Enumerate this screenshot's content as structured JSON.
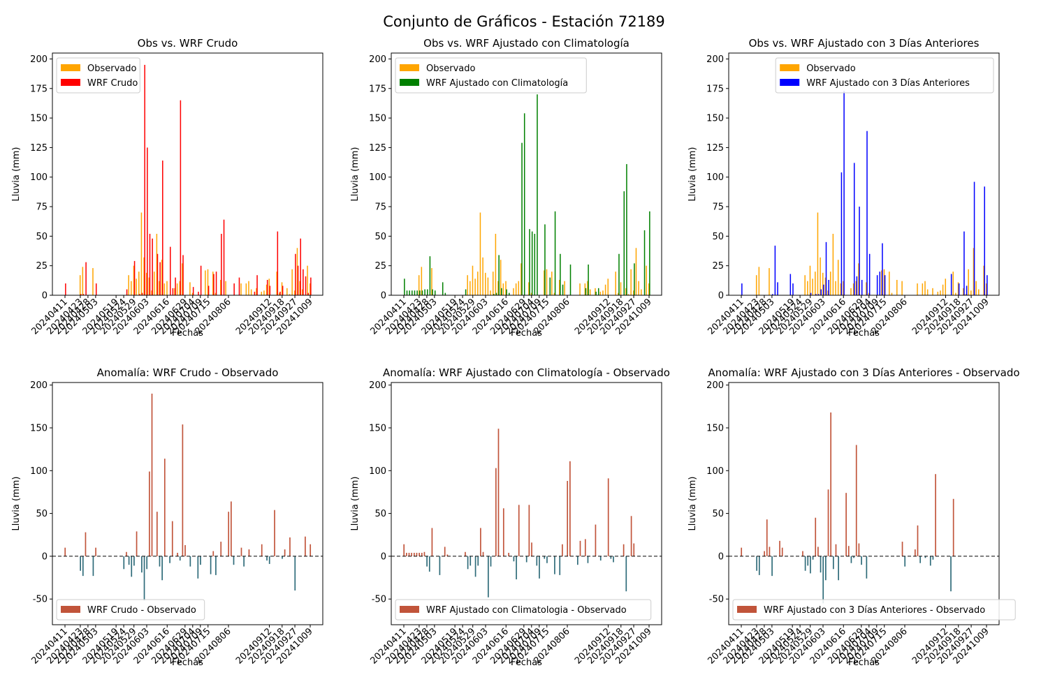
{
  "figure": {
    "title": "Conjunto de Gráficos - Estación 72189"
  },
  "colors": {
    "observed": "#FFA500",
    "raw": "#FF0000",
    "clim": "#008000",
    "prev3": "#0000FF",
    "anom_pos": "#C1543A",
    "anom_neg": "#2E6B79"
  },
  "dates": [
    "20240411",
    "20240413",
    "20240415",
    "20240417",
    "20240419",
    "20240421",
    "20240423",
    "20240425",
    "20240427",
    "20240428",
    "20240430",
    "20240501",
    "20240503",
    "20240505",
    "20240507",
    "20240509",
    "20240511",
    "20240513",
    "20240515",
    "20240517",
    "20240519",
    "20240520",
    "20240522",
    "20240524",
    "20240525",
    "20240527",
    "20240528",
    "20240529",
    "20240530",
    "20240531",
    "20240601",
    "20240602",
    "20240603",
    "20240605",
    "20240606",
    "20240608",
    "20240610",
    "20240611",
    "20240613",
    "20240614",
    "20240616",
    "20240617",
    "20240619",
    "20240621",
    "20240623",
    "20240625",
    "20240627",
    "20240629",
    "20240630",
    "20240702",
    "20240704",
    "20240705",
    "20240707",
    "20240709",
    "20240710",
    "20240712",
    "20240715",
    "20240717",
    "20240720",
    "20240723",
    "20240726",
    "20240729",
    "20240801",
    "20240803",
    "20240806",
    "20240808",
    "20240810",
    "20240812",
    "20240814",
    "20240816",
    "20240818",
    "20240820",
    "20240823",
    "20240826",
    "20240829",
    "20240901",
    "20240904",
    "20240906",
    "20240908",
    "20240910",
    "20240912",
    "20240914",
    "20240915",
    "20240916",
    "20240917",
    "20240918",
    "20240920",
    "20240922",
    "20240924",
    "20240926",
    "20240927",
    "20240929",
    "20241001",
    "20241003",
    "20241005",
    "20241007",
    "20241009"
  ],
  "tick_labels": [
    "20240411",
    "20240423",
    "20240428",
    "20240503",
    "20240519",
    "20240524",
    "20240529",
    "20240603",
    "20240616",
    "20240629",
    "20240704",
    "20240709",
    "20240715",
    "20240806",
    "20240912",
    "20240918",
    "20240927",
    "20241009"
  ],
  "chart_data": [
    {
      "type": "bar",
      "title": "Obs vs. WRF Crudo",
      "xlabel": "Fechas",
      "ylabel": "Lluvia (mm)",
      "ylim": [
        0,
        205
      ],
      "yticks": [
        0,
        25,
        50,
        75,
        100,
        125,
        150,
        175,
        200
      ],
      "legend_placement": "top-left",
      "series": [
        {
          "name": "Observado",
          "key": "obs",
          "color": "#FFA500"
        },
        {
          "name": "WRF Crudo",
          "key": "raw",
          "color": "#FF0000"
        }
      ]
    },
    {
      "type": "bar",
      "title": "Obs vs. WRF Ajustado con Climatología",
      "xlabel": "Fechas",
      "ylabel": "Lluvia (mm)",
      "ylim": [
        0,
        205
      ],
      "yticks": [
        0,
        25,
        50,
        75,
        100,
        125,
        150,
        175,
        200
      ],
      "legend_placement": "top-left",
      "series": [
        {
          "name": "Observado",
          "key": "obs",
          "color": "#FFA500"
        },
        {
          "name": "WRF Ajustado con Climatología",
          "key": "clim",
          "color": "#008000"
        }
      ]
    },
    {
      "type": "bar",
      "title": "Obs vs. WRF Ajustado con 3 Días Anteriores",
      "xlabel": "Fechas",
      "ylabel": "Lluvia (mm)",
      "ylim": [
        0,
        205
      ],
      "yticks": [
        0,
        25,
        50,
        75,
        100,
        125,
        150,
        175,
        200
      ],
      "legend_placement": "top-right",
      "series": [
        {
          "name": "Observado",
          "key": "obs",
          "color": "#FFA500"
        },
        {
          "name": "WRF Ajustado con 3 Días Anteriores",
          "key": "prev3",
          "color": "#0000FF"
        }
      ]
    },
    {
      "type": "bar",
      "title": "Anomalía: WRF Crudo - Observado",
      "xlabel": "Fechas",
      "ylabel": "Lluvia (mm)",
      "ylim": [
        -80,
        203
      ],
      "yticks": [
        -50,
        0,
        50,
        100,
        150,
        200
      ],
      "legend_placement": "bottom-left",
      "series": [
        {
          "name": "WRF Crudo - Observado",
          "key": "raw",
          "color": "#C1543A"
        }
      ]
    },
    {
      "type": "bar",
      "title": "Anomalía: WRF Ajustado con Climatología - Observado",
      "xlabel": "Fechas",
      "ylabel": "Lluvia (mm)",
      "ylim": [
        -80,
        203
      ],
      "yticks": [
        -50,
        0,
        50,
        100,
        150,
        200
      ],
      "legend_placement": "bottom-left",
      "series": [
        {
          "name": "WRF Ajustado con Climatologia - Observado",
          "key": "clim",
          "color": "#C1543A"
        }
      ]
    },
    {
      "type": "bar",
      "title": "Anomalía: WRF Ajustado con 3 Días Anteriores - Observado",
      "xlabel": "Fechas",
      "ylabel": "Lluvia (mm)",
      "ylim": [
        -80,
        203
      ],
      "yticks": [
        -50,
        0,
        50,
        100,
        150,
        200
      ],
      "legend_placement": "bottom-left",
      "series": [
        {
          "name": "WRF Ajustado con 3 Días Anteriores - Observado",
          "key": "prev3",
          "color": "#C1543A"
        }
      ]
    }
  ],
  "values": {
    "obs": [
      0,
      0,
      0,
      0,
      0,
      0,
      17,
      24,
      0,
      0,
      0,
      23,
      0,
      0,
      0,
      0,
      0,
      0,
      0,
      0,
      0,
      0,
      0,
      0,
      0,
      17,
      12,
      25,
      14,
      20,
      70,
      32,
      19,
      15,
      4,
      20,
      52,
      12,
      30,
      10,
      12,
      0,
      0,
      6,
      10,
      12,
      27,
      0,
      0,
      11,
      2,
      0,
      0,
      0,
      0,
      21,
      22,
      0,
      20,
      2,
      0,
      13,
      0,
      12,
      0,
      0,
      0,
      0,
      0,
      10,
      0,
      10,
      12,
      5,
      0,
      6,
      0,
      3,
      4,
      9,
      14,
      0,
      0,
      20,
      2,
      11,
      0,
      6,
      1,
      22,
      4,
      40,
      12,
      5,
      0,
      25,
      10
    ],
    "raw": [
      10,
      0,
      0,
      0,
      0,
      0,
      1,
      1,
      28,
      0,
      0,
      0,
      10,
      0,
      0,
      0,
      0,
      0,
      0,
      0,
      0,
      0,
      0,
      0,
      5,
      0,
      0,
      29,
      0,
      1,
      2,
      195,
      125,
      52,
      48,
      0,
      35,
      28,
      114,
      0,
      0,
      41,
      6,
      15,
      0,
      165,
      34,
      0,
      0,
      0,
      7,
      0,
      3,
      25,
      0,
      0,
      8,
      0,
      18,
      20,
      0,
      52,
      64,
      0,
      0,
      0,
      10,
      0,
      15,
      0,
      0,
      0,
      0,
      0,
      3,
      17,
      0,
      0,
      0,
      13,
      8,
      0,
      0,
      54,
      3,
      8,
      0,
      0,
      0,
      0,
      35,
      25,
      48,
      22,
      16,
      2,
      15
    ],
    "clim": [
      14,
      4,
      4,
      4,
      4,
      4,
      4,
      4,
      5,
      5,
      33,
      5,
      4,
      0,
      0,
      11,
      2,
      0,
      0,
      0,
      0,
      0,
      0,
      0,
      5,
      0,
      0,
      0,
      0,
      0,
      0,
      0,
      0,
      0,
      0,
      1,
      2,
      34,
      6,
      0,
      5,
      2,
      0,
      0,
      0,
      0,
      129,
      154,
      0,
      56,
      54,
      52,
      170,
      0,
      0,
      60,
      0,
      15,
      0,
      71,
      0,
      35,
      9,
      0,
      0,
      26,
      0,
      0,
      0,
      0,
      0,
      6,
      26,
      0,
      0,
      3,
      6,
      0,
      0,
      0,
      0,
      0,
      0,
      0,
      35,
      0,
      88,
      111,
      0,
      0,
      27,
      0,
      0,
      0,
      55,
      0,
      71
    ],
    "prev3": [
      10,
      0,
      0,
      0,
      0,
      0,
      0,
      0,
      0,
      0,
      0,
      0,
      1,
      42,
      11,
      0,
      0,
      0,
      0,
      18,
      10,
      0,
      0,
      0,
      0,
      0,
      0,
      2,
      0,
      1,
      1,
      5,
      9,
      45,
      13,
      0,
      0,
      0,
      0,
      104,
      173,
      0,
      0,
      0,
      112,
      16,
      75,
      13,
      0,
      139,
      35,
      0,
      0,
      17,
      20,
      44,
      17,
      0,
      0,
      0,
      0,
      0,
      0,
      0,
      0,
      0,
      0,
      0,
      0,
      0,
      0,
      0,
      0,
      0,
      0,
      0,
      0,
      0,
      0,
      0,
      0,
      0,
      18,
      0,
      0,
      10,
      0,
      54,
      8,
      0,
      0,
      96,
      0,
      0,
      0,
      92,
      17
    ],
    "anom_raw": [
      10,
      0,
      0,
      0,
      0,
      0,
      -17,
      -23,
      28,
      0,
      0,
      -23,
      10,
      0,
      0,
      0,
      0,
      0,
      0,
      0,
      0,
      0,
      0,
      -15,
      5,
      -10,
      -24,
      -11,
      29,
      0,
      -19,
      -52,
      -15,
      99,
      190,
      0,
      52,
      -12,
      -28,
      114,
      0,
      -8,
      41,
      0,
      4,
      -5,
      154,
      13,
      0,
      -12,
      0,
      0,
      -26,
      -10,
      0,
      0,
      0,
      -21,
      6,
      -22,
      0,
      17,
      0,
      0,
      52,
      64,
      -10,
      0,
      0,
      10,
      -12,
      0,
      8,
      0,
      0,
      0,
      0,
      14,
      0,
      -5,
      -9,
      0,
      54,
      0,
      0,
      -3,
      8,
      0,
      22,
      0,
      -40,
      0,
      0,
      0,
      23,
      0,
      14
    ],
    "anom_clim": [
      14,
      4,
      4,
      4,
      4,
      4,
      4,
      4,
      5,
      -12,
      -18,
      33,
      0,
      0,
      -22,
      0,
      11,
      2,
      0,
      0,
      0,
      0,
      0,
      0,
      5,
      -15,
      -11,
      0,
      -24,
      -11,
      33,
      5,
      0,
      -48,
      -12,
      0,
      103,
      149,
      0,
      56,
      0,
      4,
      0,
      -6,
      -27,
      60,
      0,
      0,
      -7,
      60,
      16,
      0,
      -11,
      -26,
      0,
      -3,
      -8,
      0,
      0,
      -21,
      0,
      -22,
      14,
      0,
      88,
      111,
      0,
      0,
      -10,
      18,
      0,
      20,
      -8,
      0,
      0,
      37,
      0,
      -5,
      0,
      0,
      91,
      -3,
      -7,
      0,
      0,
      0,
      14,
      -41,
      0,
      47,
      15,
      0,
      0,
      0,
      0,
      0,
      0
    ],
    "anom_prev3": [
      10,
      0,
      0,
      0,
      0,
      0,
      -17,
      -22,
      0,
      6,
      43,
      11,
      -23,
      0,
      0,
      18,
      10,
      0,
      0,
      0,
      0,
      0,
      0,
      0,
      6,
      -17,
      -11,
      -20,
      -4,
      45,
      11,
      -19,
      -55,
      -28,
      78,
      168,
      -15,
      14,
      -28,
      0,
      0,
      74,
      12,
      -8,
      -2,
      130,
      15,
      -10,
      0,
      -26,
      0,
      0,
      0,
      0,
      0,
      0,
      0,
      0,
      0,
      0,
      0,
      0,
      0,
      17,
      -12,
      0,
      0,
      0,
      8,
      36,
      -8,
      0,
      -2,
      0,
      -11,
      -4,
      96,
      0,
      0,
      0,
      0,
      0,
      -41,
      67,
      0,
      0,
      0,
      0,
      0,
      0,
      0,
      0,
      0,
      0,
      0,
      0,
      0
    ]
  },
  "anomaly_sources": [
    "anom_raw",
    "anom_clim",
    "anom_prev3"
  ]
}
